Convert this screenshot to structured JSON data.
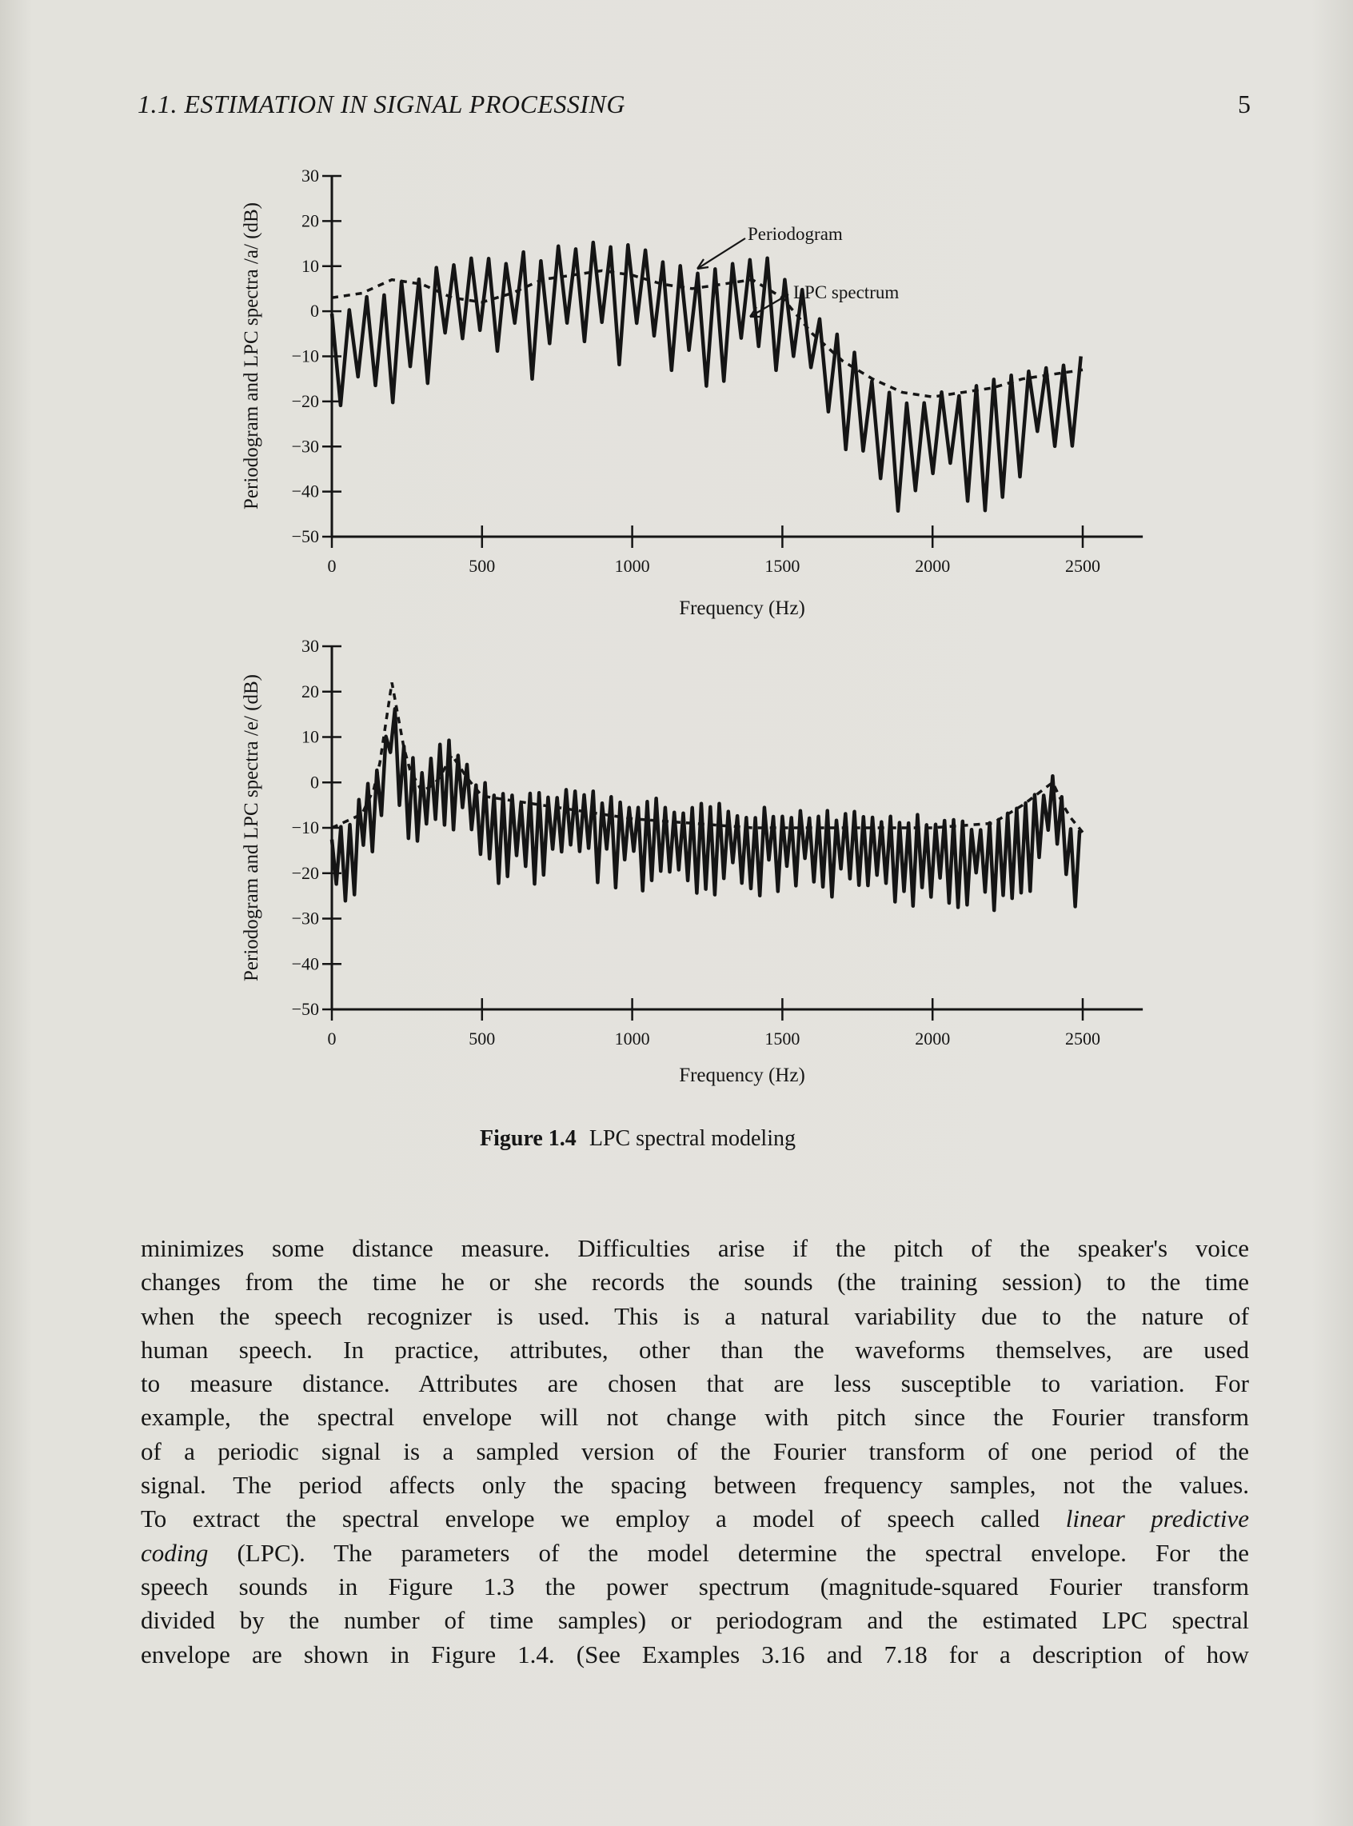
{
  "header": {
    "running_title": "1.1. ESTIMATION IN SIGNAL PROCESSING",
    "page_number": "5"
  },
  "chart_data": [
    {
      "type": "line",
      "ylabel": "Periodogram and LPC spectra /a/ (dB)",
      "xlabel": "Frequency (Hz)",
      "xlim": [
        0,
        2700
      ],
      "ylim": [
        -50,
        30
      ],
      "x_ticks": [
        "0",
        "500",
        "1000",
        "1500",
        "2000",
        "2500"
      ],
      "y_ticks": [
        "30",
        "20",
        "10",
        "0",
        "-10",
        "-20",
        "-30",
        "-40",
        "-50"
      ],
      "annotations": [
        "Periodogram",
        "LPC spectrum"
      ],
      "series": [
        {
          "name": "Periodogram",
          "style": "solid",
          "x": [
            0,
            120,
            240,
            360,
            480,
            600,
            720,
            840,
            960,
            1080,
            1200,
            1320,
            1440,
            1560,
            1680,
            1800,
            1920,
            2040,
            2160,
            2280,
            2400,
            2500
          ],
          "y": [
            -2,
            2,
            5,
            8,
            10,
            10,
            11,
            13,
            14,
            11,
            8,
            9,
            10,
            4,
            -7,
            -17,
            -22,
            -20,
            -19,
            -16,
            -13,
            -12
          ]
        },
        {
          "name": "LPC spectrum",
          "style": "dashed",
          "x": [
            0,
            100,
            200,
            300,
            400,
            500,
            600,
            700,
            800,
            900,
            1000,
            1100,
            1200,
            1300,
            1400,
            1500,
            1600,
            1700,
            1800,
            1900,
            2000,
            2100,
            2200,
            2300,
            2400,
            2500
          ],
          "y": [
            3,
            4,
            7,
            6,
            3,
            2,
            4,
            7,
            8,
            9,
            8,
            6,
            5,
            6,
            7,
            3,
            -5,
            -11,
            -15,
            -18,
            -19,
            -18,
            -17,
            -15,
            -14,
            -13
          ]
        }
      ]
    },
    {
      "type": "line",
      "ylabel": "Periodogram and LPC spectra /e/ (dB)",
      "xlabel": "Frequency (Hz)",
      "xlim": [
        0,
        2700
      ],
      "ylim": [
        -50,
        30
      ],
      "x_ticks": [
        "0",
        "500",
        "1000",
        "1500",
        "2000",
        "2500"
      ],
      "y_ticks": [
        "30",
        "20",
        "10",
        "0",
        "-10",
        "-20",
        "-30",
        "-40",
        "-50"
      ],
      "series": [
        {
          "name": "Periodogram",
          "style": "solid",
          "x": [
            0,
            80,
            160,
            200,
            240,
            300,
            360,
            420,
            480,
            540,
            600,
            700,
            800,
            900,
            1000,
            1200,
            1400,
            1600,
            1800,
            2000,
            2200,
            2350,
            2400,
            2450,
            2500
          ],
          "y": [
            -14,
            -8,
            2,
            18,
            5,
            0,
            8,
            5,
            -2,
            -4,
            -5,
            -5,
            -4,
            -5,
            -6,
            -7,
            -8,
            -8,
            -9,
            -10,
            -11,
            -5,
            0,
            -10,
            -12
          ]
        },
        {
          "name": "LPC spectrum",
          "style": "dashed",
          "x": [
            0,
            100,
            150,
            200,
            250,
            300,
            350,
            400,
            450,
            500,
            600,
            800,
            1000,
            1200,
            1400,
            1600,
            1800,
            2000,
            2200,
            2300,
            2400,
            2450,
            2500
          ],
          "y": [
            -10,
            -7,
            0,
            22,
            4,
            -2,
            0,
            6,
            1,
            -3,
            -4,
            -6,
            -8,
            -9,
            -10,
            -10,
            -10,
            -10,
            -9,
            -5,
            0,
            -7,
            -11
          ]
        }
      ]
    }
  ],
  "caption": {
    "number": "Figure 1.4",
    "text": "LPC spectral modeling"
  },
  "body": {
    "lines": [
      "minimizes some distance measure. Difficulties arise if the pitch of the speaker's voice",
      "changes from the time he or she records the sounds (the training session) to the time",
      "when the speech recognizer is used. This is a natural variability due to the nature of",
      "human speech. In practice, attributes, other than the waveforms themselves, are used",
      "to measure distance. Attributes are chosen that are less susceptible to variation. For",
      "example, the spectral envelope will not change with pitch since the Fourier transform",
      "of a periodic signal is a sampled version of the Fourier transform of one period of the",
      "signal. The period affects only the spacing between frequency samples, not the values.",
      "To extract the spectral envelope we employ a model of speech called",
      "linear predictive",
      "coding",
      " (LPC). The parameters of the model determine the spectral envelope. For the",
      "speech sounds in Figure 1.3 the power spectrum (magnitude-squared Fourier transform",
      "divided by the number of time samples) or periodogram and the estimated LPC spectral",
      "envelope are shown in Figure 1.4. (See Examples 3.16 and 7.18 for a description of how"
    ]
  }
}
